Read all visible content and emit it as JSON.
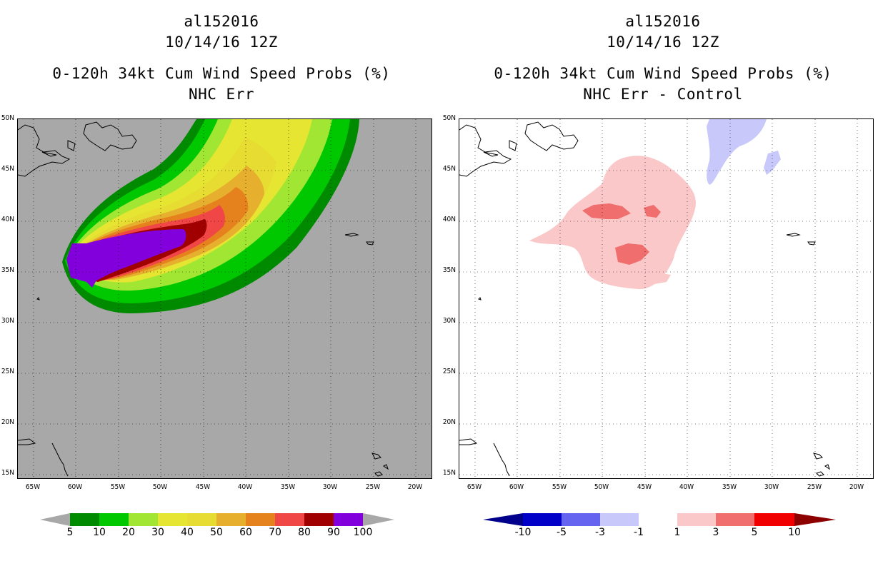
{
  "left_panel": {
    "title_line1": "al152016",
    "title_line2": "10/14/16 12Z",
    "title_line3": "0-120h 34kt Cum Wind Speed Probs (%)",
    "title_line4": "NHC Err"
  },
  "right_panel": {
    "title_line1": "al152016",
    "title_line2": "10/14/16 12Z",
    "title_line3": "0-120h 34kt Cum Wind Speed Probs (%)",
    "title_line4": "NHC Err - Control"
  },
  "lat_labels": [
    "50N",
    "45N",
    "40N",
    "35N",
    "30N",
    "25N",
    "20N",
    "15N"
  ],
  "lon_labels": [
    "65W",
    "60W",
    "55W",
    "50W",
    "45W",
    "40W",
    "35W",
    "30W",
    "25W",
    "20W"
  ],
  "left_colorbar": {
    "labels": [
      "5",
      "10",
      "20",
      "30",
      "40",
      "50",
      "60",
      "70",
      "80",
      "90",
      "100"
    ],
    "colors": [
      "#008a00",
      "#00c800",
      "#00e600",
      "#a0e632",
      "#e6e632",
      "#e6dc32",
      "#e6af2d",
      "#e6821e",
      "#f04646",
      "#a00000",
      "#8200dc"
    ],
    "under_color": "#a8a8a8",
    "over_color": "#a8a8a8"
  },
  "right_colorbar": {
    "labels": [
      "-10",
      "-5",
      "-3",
      "-1",
      "1",
      "3",
      "5",
      "10"
    ],
    "colors": [
      "#0000c8",
      "#6464f0",
      "#c8c8fa",
      "#ffffff",
      "#fac8c8",
      "#f06e6e",
      "#f00000"
    ],
    "under_color": "#00008c",
    "over_color": "#8c0000"
  }
}
